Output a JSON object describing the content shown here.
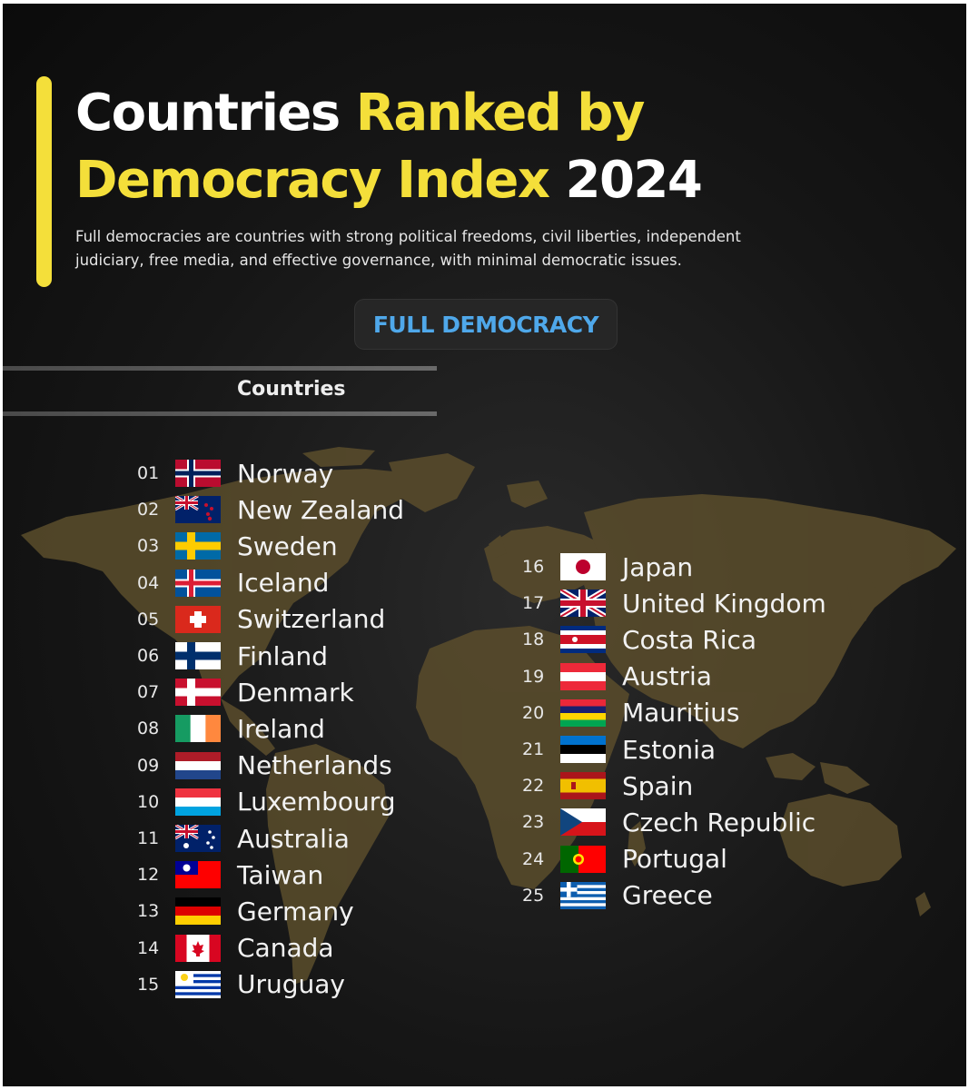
{
  "header": {
    "title_white_1": "Countries",
    "title_yellow_1": "Ranked by",
    "title_yellow_2": "Democracy Index",
    "title_white_2": "2024",
    "subtitle_line1": "Full democracies are countries with strong political freedoms, civil liberties, independent",
    "subtitle_line2": "judiciary, free media, and effective governance, with minimal democratic issues."
  },
  "category": "FULL DEMOCRACY",
  "column_header": "Countries",
  "colors": {
    "accent_yellow": "#f4df3a",
    "pill_text_blue": "#4fa8ea",
    "map_gold": "#5b4d2c",
    "background": "#161616"
  },
  "countries": [
    {
      "rank": "01",
      "name": "Norway",
      "flag": "norway-flag-icon"
    },
    {
      "rank": "02",
      "name": "New Zealand",
      "flag": "new-zealand-flag-icon"
    },
    {
      "rank": "03",
      "name": "Sweden",
      "flag": "sweden-flag-icon"
    },
    {
      "rank": "04",
      "name": "Iceland",
      "flag": "iceland-flag-icon"
    },
    {
      "rank": "05",
      "name": "Switzerland",
      "flag": "switzerland-flag-icon"
    },
    {
      "rank": "06",
      "name": "Finland",
      "flag": "finland-flag-icon"
    },
    {
      "rank": "07",
      "name": "Denmark",
      "flag": "denmark-flag-icon"
    },
    {
      "rank": "08",
      "name": "Ireland",
      "flag": "ireland-flag-icon"
    },
    {
      "rank": "09",
      "name": "Netherlands",
      "flag": "netherlands-flag-icon"
    },
    {
      "rank": "10",
      "name": "Luxembourg",
      "flag": "luxembourg-flag-icon"
    },
    {
      "rank": "11",
      "name": "Australia",
      "flag": "australia-flag-icon"
    },
    {
      "rank": "12",
      "name": "Taiwan",
      "flag": "taiwan-flag-icon"
    },
    {
      "rank": "13",
      "name": "Germany",
      "flag": "germany-flag-icon"
    },
    {
      "rank": "14",
      "name": "Canada",
      "flag": "canada-flag-icon"
    },
    {
      "rank": "15",
      "name": "Uruguay",
      "flag": "uruguay-flag-icon"
    },
    {
      "rank": "16",
      "name": "Japan",
      "flag": "japan-flag-icon"
    },
    {
      "rank": "17",
      "name": "United Kingdom",
      "flag": "united-kingdom-flag-icon"
    },
    {
      "rank": "18",
      "name": "Costa Rica",
      "flag": "costa-rica-flag-icon"
    },
    {
      "rank": "19",
      "name": "Austria",
      "flag": "austria-flag-icon"
    },
    {
      "rank": "20",
      "name": "Mauritius",
      "flag": "mauritius-flag-icon"
    },
    {
      "rank": "21",
      "name": "Estonia",
      "flag": "estonia-flag-icon"
    },
    {
      "rank": "22",
      "name": "Spain",
      "flag": "spain-flag-icon"
    },
    {
      "rank": "23",
      "name": "Czech Republic",
      "flag": "czech-republic-flag-icon"
    },
    {
      "rank": "24",
      "name": "Portugal",
      "flag": "portugal-flag-icon"
    },
    {
      "rank": "25",
      "name": "Greece",
      "flag": "greece-flag-icon"
    }
  ]
}
